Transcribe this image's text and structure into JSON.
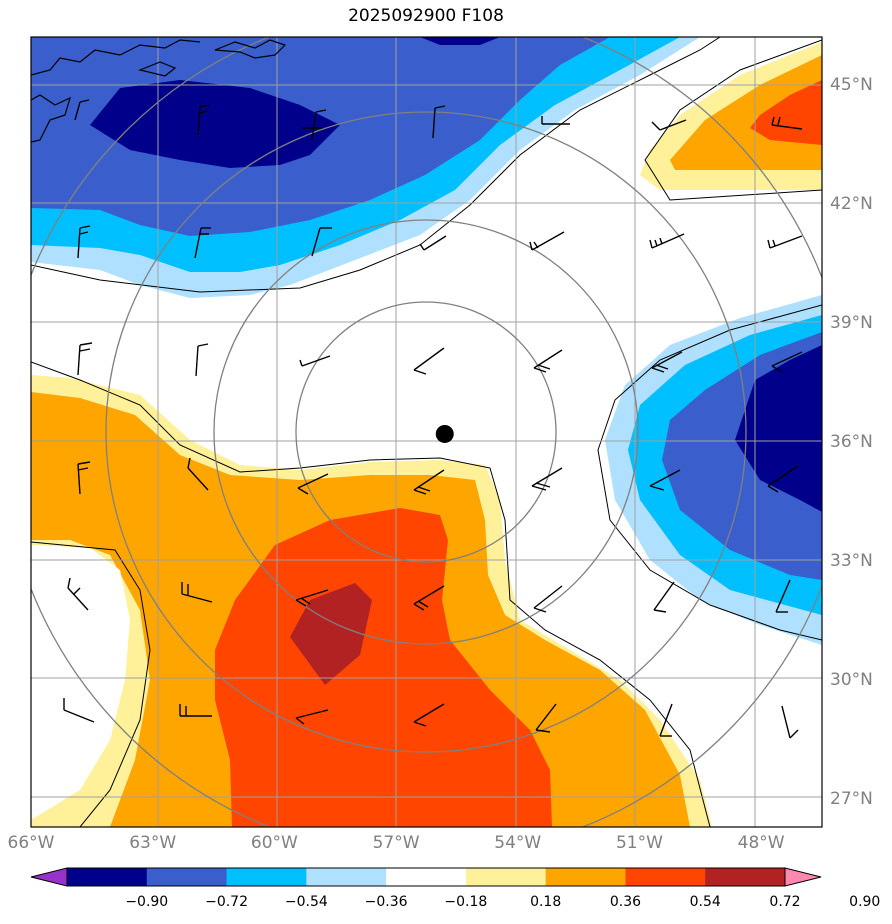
{
  "title": "2025092900 F108",
  "map": {
    "projection": "lat-lon",
    "lon_range": [
      -66,
      -46.5
    ],
    "lat_range": [
      26.3,
      46.2
    ],
    "gridlines": true,
    "gridline_color": "#a0a0a0",
    "center_marker": {
      "lon": -55.8,
      "lat": 36.2
    },
    "lat_ticks": [
      {
        "value": 45,
        "label": "45°N"
      },
      {
        "value": 42,
        "label": "42°N"
      },
      {
        "value": 39,
        "label": "39°N"
      },
      {
        "value": 36,
        "label": "36°N"
      },
      {
        "value": 33,
        "label": "33°N"
      },
      {
        "value": 30,
        "label": "30°N"
      },
      {
        "value": 27,
        "label": "27°N"
      }
    ],
    "lon_ticks": [
      {
        "value": -66,
        "label": "66°W"
      },
      {
        "value": -63,
        "label": "63°W"
      },
      {
        "value": -60,
        "label": "60°W"
      },
      {
        "value": -57,
        "label": "57°W"
      },
      {
        "value": -54,
        "label": "54°W"
      },
      {
        "value": -51,
        "label": "51°W"
      },
      {
        "value": -48,
        "label": "48°W"
      }
    ]
  },
  "colorbar": {
    "levels": [
      "−0.90",
      "−0.72",
      "−0.54",
      "−0.36",
      "−0.18",
      "0.18",
      "0.36",
      "0.54",
      "0.72",
      "0.90"
    ],
    "colors": [
      "#9932cc",
      "#00008b",
      "#3a5fcd",
      "#00bfff",
      "#b0e0ff",
      "#ffffff",
      "#fff09a",
      "#ffa500",
      "#ff4500",
      "#b22222",
      "#ff88b0"
    ]
  },
  "fill_colors": {
    "dark_blue": "#00008b",
    "blue": "#3a5fcd",
    "cyan": "#00bfff",
    "light_blue": "#b0e0ff",
    "yellow": "#fff09a",
    "orange": "#ffa500",
    "red_orange": "#ff4500",
    "dark_red": "#b22222"
  }
}
